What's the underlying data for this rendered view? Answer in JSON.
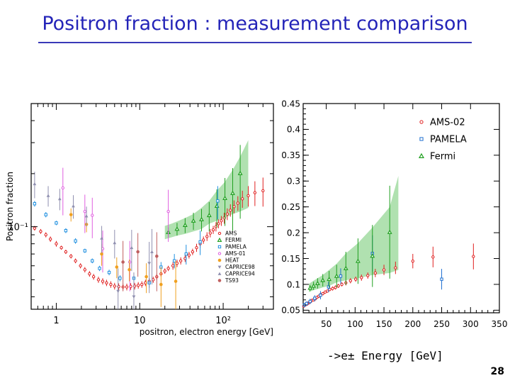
{
  "title": "Positron fraction : measurement comparison",
  "page_number": "28",
  "chart_data": [
    {
      "type": "scatter",
      "x_scale": "log",
      "y_scale": "log",
      "xlim": [
        0.5,
        400
      ],
      "ylim": [
        0.034,
        0.5
      ],
      "ylabel": "Positron fraction",
      "xlabel": "positron, electron energy [GeV]",
      "x_ticks": [
        {
          "value": 1,
          "label": "1"
        },
        {
          "value": 10,
          "label": "10"
        },
        {
          "value": 100,
          "label": "10²"
        }
      ],
      "y_ticks": [
        {
          "value": 0.1,
          "label": "10⁻¹"
        }
      ],
      "legend_position": "bottom-right",
      "series": [
        {
          "name": "AMS",
          "marker": "circle-open",
          "color": "#e02020",
          "x": [
            0.55,
            0.65,
            0.75,
            0.85,
            1.0,
            1.15,
            1.3,
            1.5,
            1.7,
            1.95,
            2.2,
            2.5,
            2.8,
            3.2,
            3.6,
            4.0,
            4.5,
            5.0,
            5.6,
            6.3,
            7.0,
            7.8,
            8.7,
            9.6,
            10.6,
            11.7,
            13,
            14.5,
            16,
            18,
            20,
            22,
            25,
            28,
            31,
            35,
            39,
            43,
            48,
            53,
            58,
            64,
            70,
            76,
            82,
            88,
            95,
            103,
            112,
            122,
            135,
            150,
            170,
            200,
            240,
            300
          ],
          "y": [
            0.098,
            0.094,
            0.09,
            0.085,
            0.08,
            0.076,
            0.072,
            0.068,
            0.064,
            0.06,
            0.057,
            0.054,
            0.052,
            0.05,
            0.049,
            0.048,
            0.047,
            0.046,
            0.0457,
            0.0455,
            0.0455,
            0.0458,
            0.046,
            0.0465,
            0.047,
            0.048,
            0.049,
            0.05,
            0.052,
            0.054,
            0.056,
            0.058,
            0.06,
            0.062,
            0.064,
            0.066,
            0.069,
            0.072,
            0.076,
            0.08,
            0.084,
            0.088,
            0.092,
            0.096,
            0.1,
            0.104,
            0.108,
            0.112,
            0.118,
            0.124,
            0.13,
            0.136,
            0.144,
            0.15,
            0.156,
            0.16
          ],
          "err": [
            0.003,
            0.003,
            0.003,
            0.003,
            0.003,
            0.002,
            0.002,
            0.002,
            0.002,
            0.002,
            0.002,
            0.002,
            0.002,
            0.002,
            0.002,
            0.002,
            0.002,
            0.002,
            0.002,
            0.002,
            0.002,
            0.002,
            0.002,
            0.002,
            0.002,
            0.002,
            0.002,
            0.002,
            0.002,
            0.002,
            0.002,
            0.002,
            0.003,
            0.003,
            0.003,
            0.003,
            0.003,
            0.003,
            0.004,
            0.004,
            0.004,
            0.005,
            0.005,
            0.005,
            0.006,
            0.006,
            0.007,
            0.008,
            0.009,
            0.01,
            0.011,
            0.013,
            0.016,
            0.02,
            0.025,
            0.03
          ]
        },
        {
          "name": "FERMI",
          "marker": "triangle-open",
          "color": "#20a020",
          "x": [
            22,
            28,
            35,
            44,
            55,
            68,
            84,
            105,
            130,
            160
          ],
          "y": [
            0.093,
            0.097,
            0.102,
            0.108,
            0.11,
            0.116,
            0.131,
            0.145,
            0.155,
            0.201
          ],
          "err": [
            0.006,
            0.008,
            0.01,
            0.012,
            0.016,
            0.022,
            0.032,
            0.044,
            0.06,
            0.09
          ]
        },
        {
          "name": "PAMELA",
          "marker": "square-open",
          "color": "#2090e0",
          "x": [
            0.55,
            0.75,
            1.0,
            1.3,
            1.7,
            2.2,
            2.7,
            3.3,
            4.3,
            5.8,
            8.5,
            13,
            18,
            26,
            36,
            53,
            86
          ],
          "y": [
            0.135,
            0.117,
            0.105,
            0.095,
            0.083,
            0.073,
            0.064,
            0.058,
            0.055,
            0.051,
            0.051,
            0.048,
            0.059,
            0.064,
            0.07,
            0.082,
            0.14
          ],
          "err": [
            0.005,
            0.004,
            0.003,
            0.003,
            0.003,
            0.002,
            0.002,
            0.002,
            0.002,
            0.002,
            0.002,
            0.003,
            0.004,
            0.006,
            0.009,
            0.013,
            0.03
          ]
        },
        {
          "name": "AMS-01",
          "marker": "circle-open",
          "color": "#e060e0",
          "x": [
            1.2,
            2.2,
            2.7,
            3.6,
            7.6,
            22
          ],
          "y": [
            0.166,
            0.122,
            0.116,
            0.075,
            0.063,
            0.122
          ],
          "err": [
            0.05,
            0.03,
            0.03,
            0.02,
            0.02,
            0.04
          ]
        },
        {
          "name": "HEAT",
          "marker": "circle-filled",
          "color": "#f0a020",
          "x": [
            1.5,
            2.3,
            3.5,
            5.3,
            7.5,
            12,
            18,
            27
          ],
          "y": [
            0.117,
            0.103,
            0.07,
            0.059,
            0.057,
            0.052,
            0.047,
            0.049
          ],
          "err": [
            0.01,
            0.01,
            0.01,
            0.008,
            0.008,
            0.01,
            0.012,
            0.015
          ]
        },
        {
          "name": "CAPRICE98",
          "marker": "triangle-down-filled",
          "color": "#9090b0",
          "x": [
            5.5,
            8.5,
            13
          ],
          "y": [
            0.043,
            0.04,
            0.062
          ],
          "err": [
            0.015,
            0.015,
            0.02
          ]
        },
        {
          "name": "CAPRICE94",
          "marker": "triangle-filled",
          "color": "#9090b0",
          "x": [
            0.55,
            0.8,
            1.1,
            1.6,
            2.3,
            3.5,
            5.0,
            8.0,
            14
          ],
          "y": [
            0.175,
            0.15,
            0.144,
            0.131,
            0.115,
            0.086,
            0.081,
            0.076,
            0.072
          ],
          "err": [
            0.03,
            0.02,
            0.02,
            0.02,
            0.015,
            0.015,
            0.015,
            0.02,
            0.025
          ]
        },
        {
          "name": "TS93",
          "marker": "circle-filled",
          "color": "#c06060",
          "x": [
            6.3,
            9.5,
            16
          ],
          "y": [
            0.063,
            0.072,
            0.068
          ],
          "err": [
            0.02,
            0.02,
            0.025
          ]
        }
      ],
      "band": {
        "series": "FERMI",
        "x": [
          20,
          24,
          28,
          35,
          44,
          55,
          68,
          84,
          105,
          130,
          160,
          200
        ],
        "low": [
          0.085,
          0.087,
          0.089,
          0.091,
          0.094,
          0.097,
          0.104,
          0.108,
          0.112,
          0.118,
          0.122,
          0.128
        ],
        "high": [
          0.101,
          0.104,
          0.107,
          0.112,
          0.118,
          0.128,
          0.14,
          0.16,
          0.18,
          0.21,
          0.25,
          0.31
        ]
      }
    },
    {
      "type": "scatter",
      "xlim": [
        10,
        350
      ],
      "ylim": [
        0.045,
        0.45
      ],
      "x_ticks": [
        50,
        100,
        150,
        200,
        250,
        300,
        350
      ],
      "y_ticks": [
        {
          "value": 0.05,
          "label": "0.05"
        },
        {
          "value": 0.1,
          "label": "0.1"
        },
        {
          "value": 0.15,
          "label": "0.15"
        },
        {
          "value": 0.2,
          "label": "0.2"
        },
        {
          "value": 0.25,
          "label": "0.25"
        },
        {
          "value": 0.3,
          "label": "0.3"
        },
        {
          "value": 0.35,
          "label": "0.35"
        },
        {
          "value": 0.4,
          "label": "0.4"
        },
        {
          "value": 0.45,
          "label": "0.45"
        }
      ],
      "legend_position": "top-right",
      "series": [
        {
          "name": "AMS-02",
          "marker": "circle-open",
          "color": "#e02020",
          "x": [
            11,
            13,
            15,
            17,
            19,
            21,
            23,
            25,
            28,
            31,
            34,
            37,
            40,
            44,
            48,
            52,
            56,
            61,
            66,
            71,
            77,
            84,
            92,
            101,
            111,
            122,
            135,
            150,
            170,
            200,
            235,
            305
          ],
          "y": [
            0.058,
            0.06,
            0.061,
            0.062,
            0.064,
            0.065,
            0.067,
            0.069,
            0.07,
            0.072,
            0.075,
            0.077,
            0.08,
            0.082,
            0.085,
            0.087,
            0.09,
            0.092,
            0.094,
            0.097,
            0.1,
            0.103,
            0.107,
            0.11,
            0.113,
            0.117,
            0.122,
            0.128,
            0.132,
            0.145,
            0.153,
            0.154
          ],
          "err": [
            0.002,
            0.002,
            0.002,
            0.002,
            0.002,
            0.002,
            0.002,
            0.002,
            0.002,
            0.002,
            0.002,
            0.003,
            0.003,
            0.003,
            0.003,
            0.003,
            0.003,
            0.004,
            0.004,
            0.004,
            0.004,
            0.005,
            0.005,
            0.005,
            0.006,
            0.006,
            0.008,
            0.01,
            0.012,
            0.014,
            0.02,
            0.025
          ]
        },
        {
          "name": "PAMELA",
          "marker": "square-open",
          "color": "#2070d0",
          "x": [
            12,
            16,
            22,
            30,
            40,
            54,
            75,
            130,
            250
          ],
          "y": [
            0.06,
            0.063,
            0.067,
            0.073,
            0.079,
            0.095,
            0.116,
            0.16,
            0.11
          ],
          "err": [
            0.004,
            0.004,
            0.005,
            0.006,
            0.008,
            0.01,
            0.015,
            0.035,
            0.02
          ]
        },
        {
          "name": "Fermi",
          "marker": "triangle-open",
          "color": "#20a020",
          "x": [
            22,
            28,
            35,
            44,
            55,
            68,
            84,
            105,
            130,
            160
          ],
          "y": [
            0.093,
            0.097,
            0.102,
            0.108,
            0.11,
            0.116,
            0.131,
            0.145,
            0.155,
            0.201
          ],
          "err": [
            0.006,
            0.008,
            0.01,
            0.012,
            0.016,
            0.022,
            0.032,
            0.044,
            0.06,
            0.09
          ]
        }
      ],
      "band": {
        "series": "Fermi",
        "x": [
          20,
          24,
          28,
          35,
          44,
          55,
          68,
          84,
          105,
          130,
          160,
          175
        ],
        "low": [
          0.085,
          0.087,
          0.089,
          0.091,
          0.094,
          0.097,
          0.104,
          0.108,
          0.112,
          0.118,
          0.122,
          0.128
        ],
        "high": [
          0.101,
          0.104,
          0.107,
          0.112,
          0.118,
          0.128,
          0.14,
          0.16,
          0.18,
          0.21,
          0.25,
          0.31
        ]
      }
    }
  ],
  "right_x_caption": "->e± Energy [GeV]"
}
